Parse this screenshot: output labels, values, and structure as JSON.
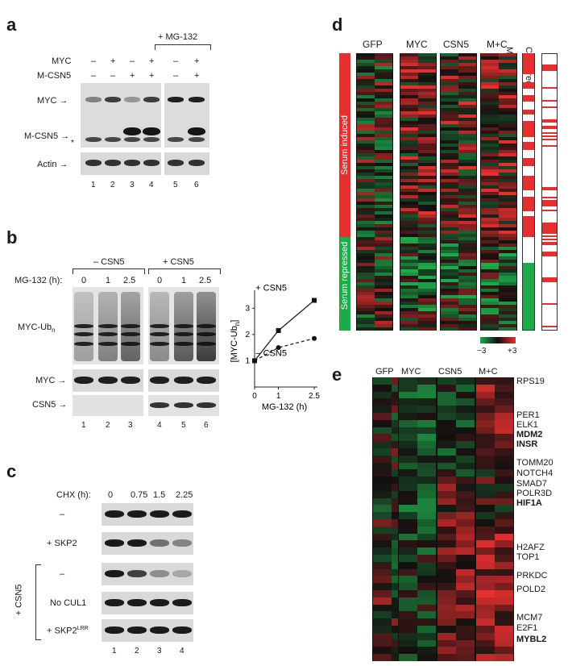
{
  "panel_a": {
    "label": "a",
    "mg132_header": "+ MG-132",
    "row_myc": "MYC",
    "row_mcsn5": "M-CSN5",
    "myc_signs": [
      "–",
      "+",
      "–",
      "+",
      "–",
      "+"
    ],
    "mcsn5_signs": [
      "–",
      "–",
      "+",
      "+",
      "–",
      "+"
    ],
    "band_myc": "MYC →",
    "band_mcsn5": "M-CSN5 →",
    "band_star": "*",
    "band_actin": "Actin →",
    "lanes": [
      "1",
      "2",
      "3",
      "4",
      "5",
      "6"
    ]
  },
  "panel_b": {
    "label": "b",
    "group_minus": "– CSN5",
    "group_plus": "+ CSN5",
    "mg132_label": "MG-132 (h):",
    "times": [
      "0",
      "1",
      "2.5",
      "0",
      "1",
      "2.5"
    ],
    "row_mycub": "MYC-Ub",
    "row_mycub_sub": "n",
    "row_myc": "MYC →",
    "row_csn5": "CSN5 →",
    "lanes": [
      "1",
      "2",
      "3",
      "4",
      "5",
      "6"
    ]
  },
  "chart_data": {
    "type": "line",
    "xlabel": "MG-132 (h)",
    "ylabel": "[MYC-Ub",
    "ylabel_sub": "n",
    "ylabel_end": "]",
    "xlim": [
      0,
      2.5
    ],
    "ylim": [
      0,
      3.5
    ],
    "xticks": [
      "0",
      "1",
      "2.5"
    ],
    "yticks": [
      "1",
      "2",
      "3"
    ],
    "series": [
      {
        "name": "+ CSN5",
        "x": [
          0,
          1,
          2.5
        ],
        "y": [
          1.0,
          2.15,
          3.3
        ],
        "marker": "square",
        "line": "solid"
      },
      {
        "name": "– CSN5",
        "x": [
          0,
          1,
          2.5
        ],
        "y": [
          1.0,
          1.5,
          1.85
        ],
        "marker": "circle",
        "line": "dashed"
      }
    ]
  },
  "panel_c": {
    "label": "c",
    "chx_label": "CHX (h):",
    "times": [
      "0",
      "0.75",
      "1.5",
      "2.25"
    ],
    "rows": [
      "–",
      "+ SKP2",
      "–",
      "No CUL1",
      "+ SKP2"
    ],
    "row_sup": "LRR",
    "bracket_label": "+ CSN5",
    "lanes": [
      "1",
      "2",
      "3",
      "4"
    ],
    "row_intensity": [
      [
        1,
        1,
        1,
        1
      ],
      [
        1,
        1,
        0.55,
        0.45
      ],
      [
        1,
        0.8,
        0.4,
        0.25
      ],
      [
        1,
        1,
        1,
        1
      ],
      [
        1,
        1,
        1,
        1
      ]
    ]
  },
  "panel_d": {
    "label": "d",
    "groups": [
      "GFP",
      "MYC",
      "CSN5",
      "M+C"
    ],
    "side_cols": [
      "MYC suff",
      "CSN5 req"
    ],
    "side_induced": "Serum induced",
    "side_repressed": "Serum repressed",
    "scale_min": "−3",
    "scale_max": "+3",
    "color_low": "#1faa4a",
    "color_high": "#e5302f"
  },
  "panel_e": {
    "label": "e",
    "groups": [
      "GFP",
      "MYC",
      "CSN5",
      "M+C"
    ],
    "genes": [
      {
        "name": "RPS19",
        "bold": false
      },
      {
        "name": "PER1",
        "bold": false
      },
      {
        "name": "ELK1",
        "bold": false
      },
      {
        "name": "MDM2",
        "bold": true
      },
      {
        "name": "INSR",
        "bold": true
      },
      {
        "name": "TOMM20",
        "bold": false
      },
      {
        "name": "NOTCH4",
        "bold": false
      },
      {
        "name": "SMAD7",
        "bold": false
      },
      {
        "name": "POLR3D",
        "bold": false
      },
      {
        "name": "HIF1A",
        "bold": true
      },
      {
        "name": "H2AFZ",
        "bold": false
      },
      {
        "name": "TOP1",
        "bold": false
      },
      {
        "name": "PRKDC",
        "bold": false
      },
      {
        "name": "POLD2",
        "bold": false
      },
      {
        "name": "MCM7",
        "bold": false
      },
      {
        "name": "E2F1",
        "bold": false
      },
      {
        "name": "MYBL2",
        "bold": true
      }
    ]
  }
}
